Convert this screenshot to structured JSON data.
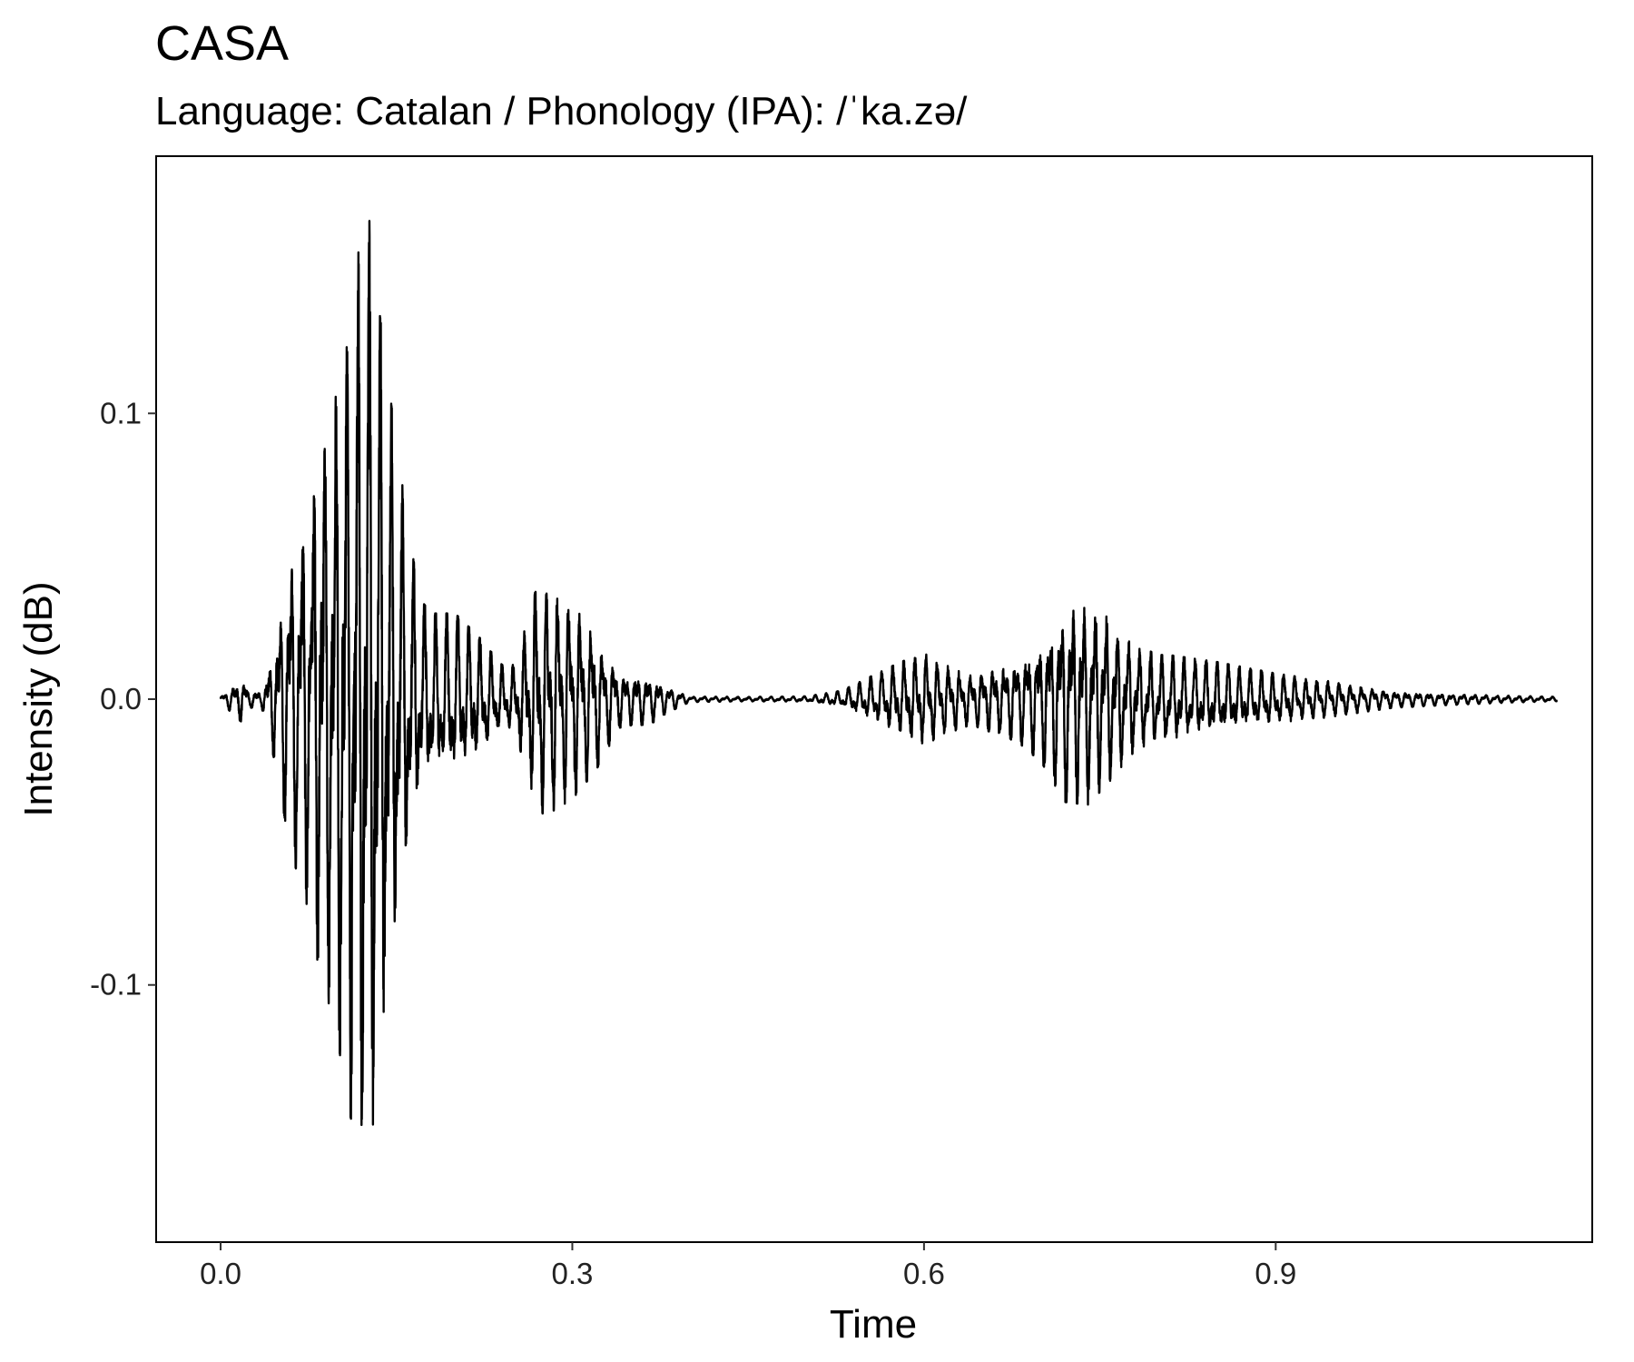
{
  "chart_data": {
    "type": "line",
    "title": "CASA",
    "subtitle": "Language: Catalan / Phonology (IPA): /ˈka.zə/",
    "xlabel": "Time",
    "ylabel": "Intensity (dB)",
    "xlim": [
      -0.055,
      1.17
    ],
    "ylim": [
      -0.19,
      0.19
    ],
    "x_ticks": [
      0.0,
      0.3,
      0.6,
      0.9
    ],
    "x_tick_labels": [
      "0.0",
      "0.3",
      "0.6",
      "0.9"
    ],
    "y_ticks": [
      -0.1,
      0.0,
      0.1
    ],
    "y_tick_labels": [
      "-0.1",
      "0.0",
      "0.1"
    ],
    "grid": false,
    "line_color": "#000000",
    "series": [
      {
        "x": [
          0.0,
          0.015,
          0.018,
          0.02,
          0.025,
          0.035,
          0.04,
          0.05,
          0.06,
          0.07,
          0.08,
          0.09,
          0.1,
          0.11,
          0.12,
          0.125,
          0.13,
          0.14,
          0.15,
          0.16,
          0.17,
          0.18,
          0.2,
          0.22,
          0.24,
          0.25,
          0.26,
          0.27,
          0.28,
          0.3,
          0.32,
          0.34,
          0.36,
          0.37,
          0.38,
          0.4,
          0.45,
          0.5,
          0.53,
          0.55,
          0.58,
          0.6,
          0.62,
          0.64,
          0.66,
          0.68,
          0.7,
          0.72,
          0.74,
          0.76,
          0.78,
          0.8,
          0.85,
          0.9,
          0.95,
          1.0,
          1.05,
          1.1,
          1.14
        ],
        "amplitude": [
          0.001,
          0.007,
          0.008,
          0.007,
          0.003,
          0.003,
          0.01,
          0.03,
          0.055,
          0.065,
          0.085,
          0.11,
          0.12,
          0.145,
          0.16,
          0.175,
          0.155,
          0.12,
          0.09,
          0.06,
          0.035,
          0.03,
          0.03,
          0.022,
          0.012,
          0.012,
          0.025,
          0.04,
          0.04,
          0.035,
          0.025,
          0.01,
          0.009,
          0.008,
          0.005,
          0.001,
          0.0008,
          0.001,
          0.003,
          0.007,
          0.013,
          0.016,
          0.012,
          0.009,
          0.012,
          0.015,
          0.022,
          0.036,
          0.037,
          0.028,
          0.018,
          0.016,
          0.013,
          0.009,
          0.006,
          0.003,
          0.002,
          0.0012,
          0.0008
        ]
      }
    ]
  }
}
